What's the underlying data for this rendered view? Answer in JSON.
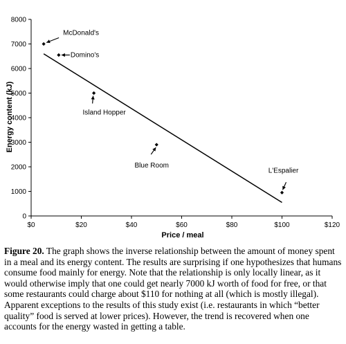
{
  "chart_data": {
    "type": "scatter",
    "xlabel": "Price / meal",
    "ylabel": "Energy content (kJ)",
    "xlim": [
      0,
      120
    ],
    "ylim": [
      0,
      8000
    ],
    "x_ticks": [
      "$0",
      "$20",
      "$40",
      "$60",
      "$80",
      "$100",
      "$120"
    ],
    "y_ticks": [
      "0",
      "1000",
      "2000",
      "3000",
      "4000",
      "5000",
      "6000",
      "7000",
      "8000"
    ],
    "points": [
      {
        "label": "McDonald's",
        "x": 5,
        "y": 7000
      },
      {
        "label": "Domino's",
        "x": 11,
        "y": 6550
      },
      {
        "label": "Island Hopper",
        "x": 25,
        "y": 5000
      },
      {
        "label": "Blue Room",
        "x": 50,
        "y": 2900
      },
      {
        "label": "L'Espalier",
        "x": 100,
        "y": 950
      }
    ],
    "trendline": {
      "x": [
        5,
        100
      ],
      "y": [
        6600,
        550
      ]
    },
    "grid": false,
    "legend": "none"
  },
  "caption": {
    "figure_label": "Figure 20.",
    "text": " The graph shows the inverse relationship between the amount of money spent in a meal and its energy content. The results are surprising if one hypothesizes that humans consume food mainly for energy. Note that the relationship is only locally linear, as it would otherwise imply that one could get nearly 7000 kJ worth of food for free, or that some restaurants could charge about $110 for nothing at all (which is mostly illegal). Apparent exceptions to the results of this study exist (i.e. restaurants in which “better quality” food is served at lower prices). However, the trend is recovered when one accounts for the energy wasted in getting a table."
  }
}
